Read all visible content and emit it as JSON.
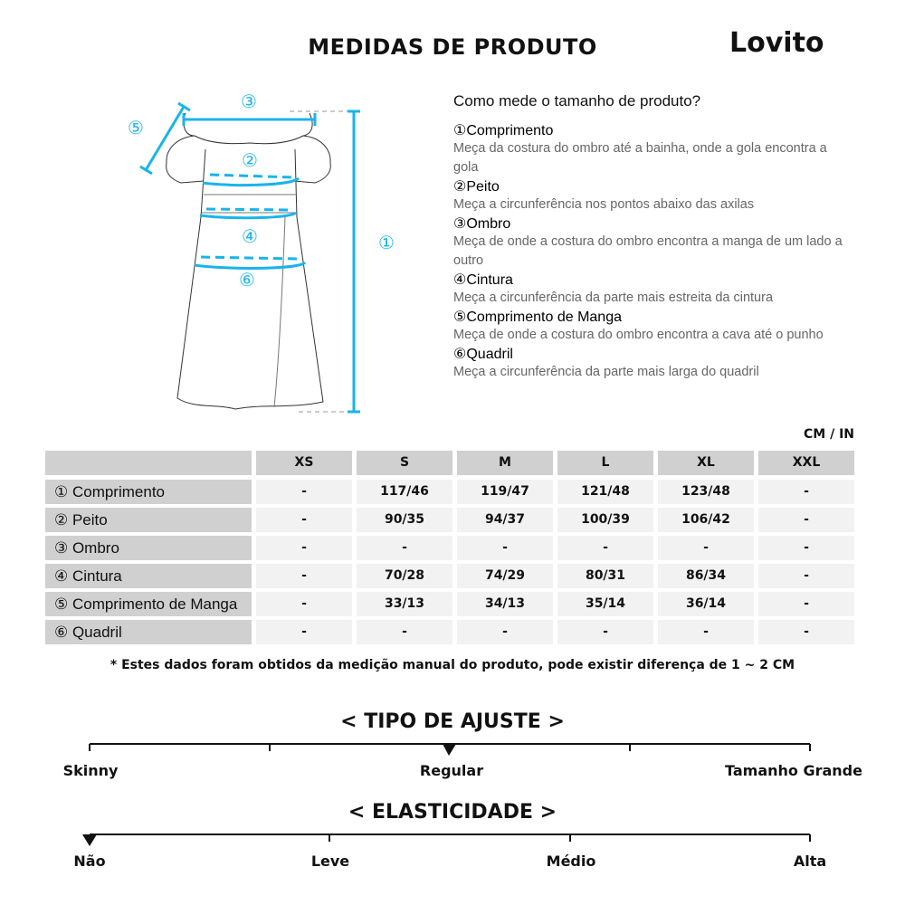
{
  "header": {
    "title": "MEDIDAS DE PRODUTO",
    "logo": "Lovito"
  },
  "diagram": {
    "accent_color": "#19b4ea",
    "markers": [
      "①",
      "②",
      "③",
      "④",
      "⑤",
      "⑥"
    ]
  },
  "guide": {
    "question": "Como mede o tamanho de produto?",
    "items": [
      {
        "title": "①Comprimento",
        "desc": "Meça da costura do ombro até a bainha, onde a gola encontra a gola"
      },
      {
        "title": "②Peito",
        "desc": "Meça a circunferência nos pontos abaixo das axilas"
      },
      {
        "title": "③Ombro",
        "desc": "Meça de onde a costura do ombro encontra a manga de um lado a outro"
      },
      {
        "title": "④Cintura",
        "desc": "Meça a circunferência da parte mais estreita da cintura"
      },
      {
        "title": "⑤Comprimento de Manga",
        "desc": "Meça de onde a costura do ombro encontra a cava até o punho"
      },
      {
        "title": "⑥Quadril",
        "desc": "Meça a circunferência da parte mais larga do quadril"
      }
    ]
  },
  "table": {
    "unit": "CM / IN",
    "sizes": [
      "XS",
      "S",
      "M",
      "L",
      "XL",
      "XXL"
    ],
    "rows": [
      {
        "label": "① Comprimento",
        "values": [
          "-",
          "117/46",
          "119/47",
          "121/48",
          "123/48",
          "-"
        ]
      },
      {
        "label": "② Peito",
        "values": [
          "-",
          "90/35",
          "94/37",
          "100/39",
          "106/42",
          "-"
        ]
      },
      {
        "label": "③ Ombro",
        "values": [
          "-",
          "-",
          "-",
          "-",
          "-",
          "-"
        ]
      },
      {
        "label": "④ Cintura",
        "values": [
          "-",
          "70/28",
          "74/29",
          "80/31",
          "86/34",
          "-"
        ]
      },
      {
        "label": "⑤ Comprimento de Manga",
        "values": [
          "-",
          "33/13",
          "34/13",
          "35/14",
          "36/14",
          "-"
        ]
      },
      {
        "label": "⑥ Quadril",
        "values": [
          "-",
          "-",
          "-",
          "-",
          "-",
          "-"
        ]
      }
    ],
    "note": "* Estes dados foram obtidos da medição manual do produto, pode existir diferença de 1 ~ 2 CM"
  },
  "fit": {
    "title": "< TIPO DE AJUSTE >",
    "labels": [
      "Skinny",
      "Regular",
      "Tamanho Grande"
    ],
    "selected": "Regular"
  },
  "elasticity": {
    "title": "< ELASTICIDADE >",
    "labels": [
      "Não",
      "Leve",
      "Médio",
      "Alta"
    ],
    "selected": "Não"
  }
}
